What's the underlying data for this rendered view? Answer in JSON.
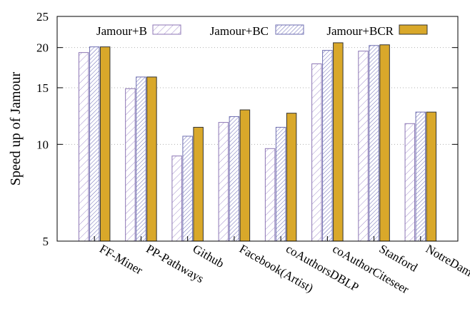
{
  "chart_data": {
    "type": "bar",
    "ylabel": "Speed up of Jamour",
    "xlabel": "",
    "title": "",
    "y_scale": "log",
    "ylim": [
      5,
      25
    ],
    "yticks": [
      5,
      10,
      15,
      20,
      25
    ],
    "grid": "y-dotted",
    "legend_position": "top",
    "categories": [
      "FF-Miner",
      "PP-Pathways",
      "Github",
      "Facebook(Artist)",
      "coAuthorsDBLP",
      "coAuthorCiteseer",
      "Stanford",
      "NotreDame"
    ],
    "series": [
      {
        "name": "Jamour+B",
        "values": [
          19.3,
          14.9,
          9.2,
          11.7,
          9.7,
          17.8,
          19.5,
          11.6
        ],
        "pattern": "diag-light",
        "color": "#8c76b4"
      },
      {
        "name": "Jamour+BC",
        "values": [
          20.1,
          16.2,
          10.6,
          12.2,
          11.3,
          19.6,
          20.3,
          12.6
        ],
        "pattern": "diag-dense",
        "color": "#6e6eb0"
      },
      {
        "name": "Jamour+BCR",
        "values": [
          20.1,
          16.2,
          11.3,
          12.8,
          12.5,
          20.7,
          20.4,
          12.6
        ],
        "pattern": "solid",
        "color": "#d9a82a"
      }
    ]
  }
}
